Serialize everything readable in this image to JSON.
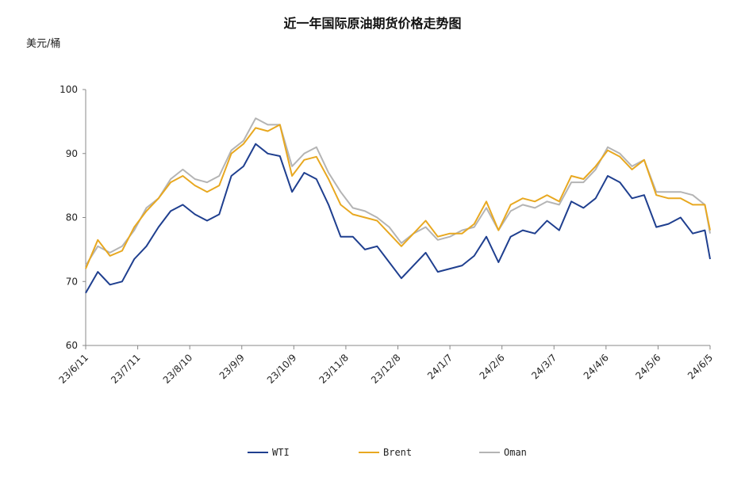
{
  "chart_data": {
    "type": "line",
    "title": "近一年国际原油期货价格走势图",
    "ylabel": "美元/桶",
    "xlabel": "",
    "ylim": [
      60,
      100
    ],
    "yticks": [
      60,
      70,
      80,
      90,
      100
    ],
    "xlim": [
      "2023-06-11",
      "2024-06-05"
    ],
    "xtick_labels": [
      "23/6/11",
      "23/7/11",
      "23/8/10",
      "23/9/9",
      "23/10/9",
      "23/11/8",
      "23/12/8",
      "24/1/7",
      "24/2/6",
      "24/3/7",
      "24/4/6",
      "24/5/6",
      "24/6/5"
    ],
    "grid": false,
    "legend": "bottom",
    "x": [
      "2023-06-11",
      "2023-06-18",
      "2023-06-25",
      "2023-07-02",
      "2023-07-09",
      "2023-07-16",
      "2023-07-23",
      "2023-07-30",
      "2023-08-06",
      "2023-08-13",
      "2023-08-20",
      "2023-08-27",
      "2023-09-03",
      "2023-09-10",
      "2023-09-17",
      "2023-09-24",
      "2023-10-01",
      "2023-10-08",
      "2023-10-15",
      "2023-10-22",
      "2023-10-29",
      "2023-11-05",
      "2023-11-12",
      "2023-11-19",
      "2023-11-26",
      "2023-12-03",
      "2023-12-10",
      "2023-12-17",
      "2023-12-24",
      "2023-12-31",
      "2024-01-07",
      "2024-01-14",
      "2024-01-21",
      "2024-01-28",
      "2024-02-04",
      "2024-02-11",
      "2024-02-18",
      "2024-02-25",
      "2024-03-03",
      "2024-03-10",
      "2024-03-17",
      "2024-03-24",
      "2024-03-31",
      "2024-04-07",
      "2024-04-14",
      "2024-04-21",
      "2024-04-28",
      "2024-05-05",
      "2024-05-12",
      "2024-05-19",
      "2024-05-26",
      "2024-06-02",
      "2024-06-05"
    ],
    "series": [
      {
        "name": "WTI",
        "color": "#1f3f8f",
        "values": [
          68.2,
          71.5,
          69.5,
          70,
          73.5,
          75.5,
          78.5,
          81,
          82,
          80.5,
          79.5,
          80.5,
          86.5,
          88,
          91.5,
          90,
          89.6,
          84,
          87,
          86,
          82,
          77,
          77,
          75,
          75.5,
          73,
          70.5,
          72.5,
          74.5,
          71.5,
          72,
          72.5,
          74,
          77,
          73,
          77,
          78,
          77.5,
          79.5,
          78,
          82.5,
          81.5,
          83,
          86.5,
          85.5,
          83,
          83.5,
          78.5,
          79,
          80,
          77.5,
          78,
          73.5
        ]
      },
      {
        "name": "Brent",
        "color": "#e8a820",
        "values": [
          72,
          76.5,
          74,
          74.8,
          78.5,
          81,
          83,
          85.5,
          86.5,
          85,
          84,
          85,
          90,
          91.5,
          94,
          93.5,
          94.5,
          86.5,
          89,
          89.5,
          86,
          82,
          80.5,
          80,
          79.5,
          77.5,
          75.5,
          77.5,
          79.5,
          77,
          77.5,
          77.5,
          79,
          82.5,
          78,
          82,
          83,
          82.5,
          83.5,
          82.5,
          86.5,
          86,
          88,
          90.5,
          89.5,
          87.5,
          89,
          83.5,
          83,
          83,
          82,
          82,
          78
        ]
      },
      {
        "name": "Oman",
        "color": "#b4b4b4",
        "values": [
          72.5,
          75.5,
          74.5,
          75.5,
          78,
          81.5,
          83,
          86,
          87.5,
          86,
          85.5,
          86.5,
          90.5,
          92,
          95.5,
          94.5,
          94.5,
          88,
          90,
          91,
          87,
          84,
          81.5,
          81,
          80,
          78.5,
          76,
          77.5,
          78.5,
          76.5,
          77,
          78,
          78.5,
          81.5,
          78,
          81,
          82,
          81.5,
          82.5,
          82,
          85.5,
          85.5,
          87.5,
          91,
          90,
          88,
          89,
          84,
          84,
          84,
          83.5,
          82,
          77.5
        ]
      }
    ]
  }
}
